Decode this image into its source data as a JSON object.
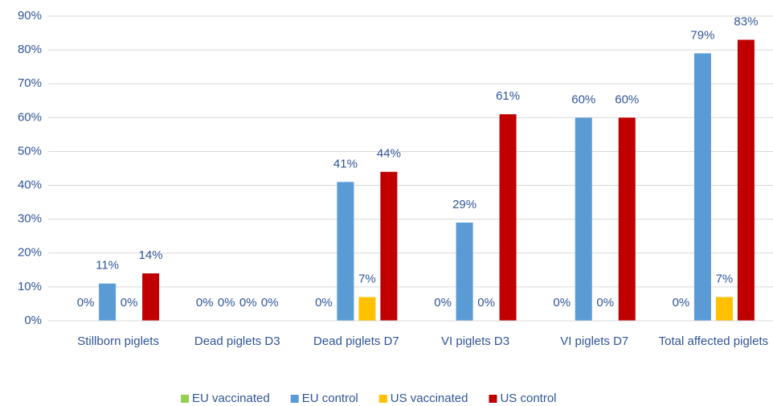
{
  "chart_data": {
    "type": "bar",
    "categories": [
      "Stillborn piglets",
      "Dead piglets D3",
      "Dead piglets D7",
      "VI piglets D3",
      "VI piglets D7",
      "Total affected piglets"
    ],
    "series": [
      {
        "name": "EU vaccinated",
        "color": "#92d050",
        "values": [
          0,
          0,
          0,
          0,
          0,
          0
        ],
        "value_labels": [
          "0%",
          "0%",
          "0%",
          "0%",
          "0%",
          "0%"
        ]
      },
      {
        "name": "EU control",
        "color": "#5b9bd5",
        "values": [
          11,
          0,
          41,
          29,
          60,
          79
        ],
        "value_labels": [
          "11%",
          "0%",
          "41%",
          "29%",
          "60%",
          "79%"
        ]
      },
      {
        "name": "US vaccinated",
        "color": "#ffc000",
        "values": [
          0,
          0,
          7,
          0,
          0,
          7
        ],
        "value_labels": [
          "0%",
          "0%",
          "7%",
          "0%",
          "0%",
          "7%"
        ]
      },
      {
        "name": "US control",
        "color": "#c00000",
        "values": [
          14,
          0,
          44,
          61,
          60,
          83
        ],
        "value_labels": [
          "14%",
          "0%",
          "44%",
          "61%",
          "60%",
          "83%"
        ]
      }
    ],
    "ylim": [
      0,
      90
    ],
    "yticks": [
      {
        "value": 0,
        "label": "0%"
      },
      {
        "value": 10,
        "label": "10%"
      },
      {
        "value": 20,
        "label": "20%"
      },
      {
        "value": 30,
        "label": "30%"
      },
      {
        "value": 40,
        "label": "40%"
      },
      {
        "value": 50,
        "label": "50%"
      },
      {
        "value": 60,
        "label": "60%"
      },
      {
        "value": 70,
        "label": "70%"
      },
      {
        "value": 80,
        "label": "80%"
      },
      {
        "value": 90,
        "label": "90%"
      }
    ],
    "grid": true,
    "legend": "bottom"
  }
}
